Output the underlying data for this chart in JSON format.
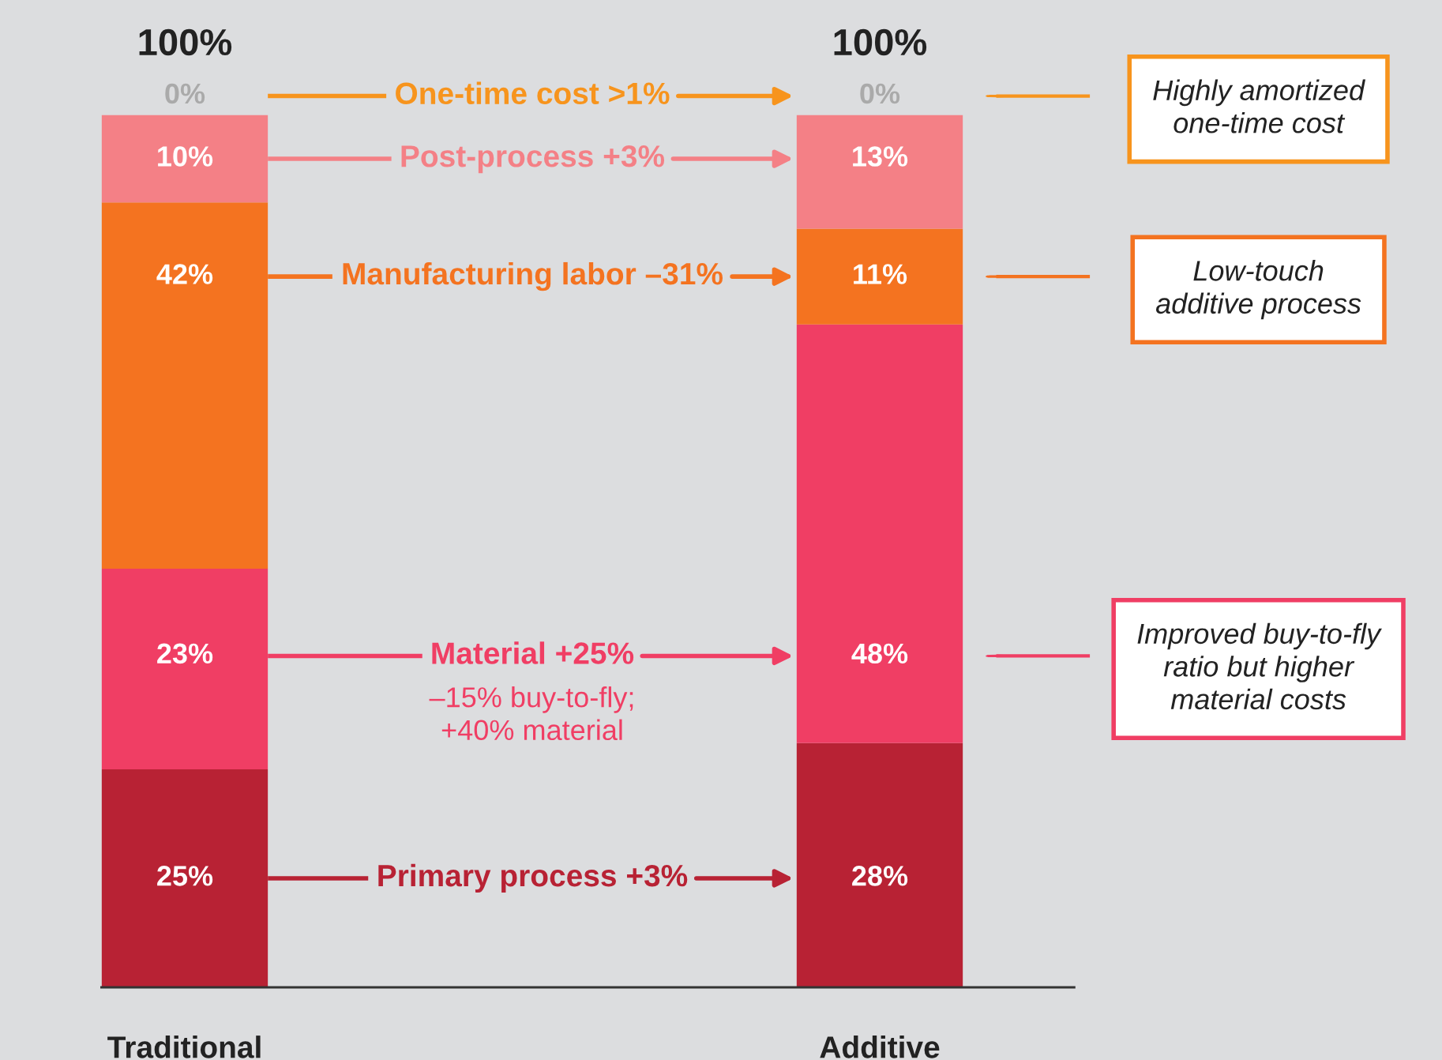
{
  "chart_data": {
    "type": "bar",
    "stacked": true,
    "legend": "center",
    "categories": [
      "Traditional",
      "Additive"
    ],
    "totals": [
      "100%",
      "100%"
    ],
    "series": [
      {
        "name": "Primary process +3%",
        "color": "#b82234",
        "values": [
          25,
          28
        ],
        "value_labels": [
          "25%",
          "28%"
        ]
      },
      {
        "name": "Material +25%",
        "color": "#f03e64",
        "values": [
          23,
          48
        ],
        "value_labels": [
          "23%",
          "48%"
        ]
      },
      {
        "name": "Manufacturing labor –31%",
        "color": "#f47320",
        "values": [
          42,
          11
        ],
        "value_labels": [
          "42%",
          "11%"
        ]
      },
      {
        "name": "Post-process +3%",
        "color": "#f48086",
        "values": [
          10,
          13
        ],
        "value_labels": [
          "10%",
          "13%"
        ]
      },
      {
        "name": "One-time cost >1%",
        "color": "#f7941d",
        "values": [
          0,
          0
        ],
        "value_labels": [
          "0%",
          "0%"
        ]
      }
    ],
    "annotations": [
      "–15% buy-to-fly;\n+40% material",
      "Highly amortized\none-time cost",
      "Low-touch\nadditive process",
      "Improved buy-to-fly\nratio but higher\nmaterial costs"
    ]
  }
}
